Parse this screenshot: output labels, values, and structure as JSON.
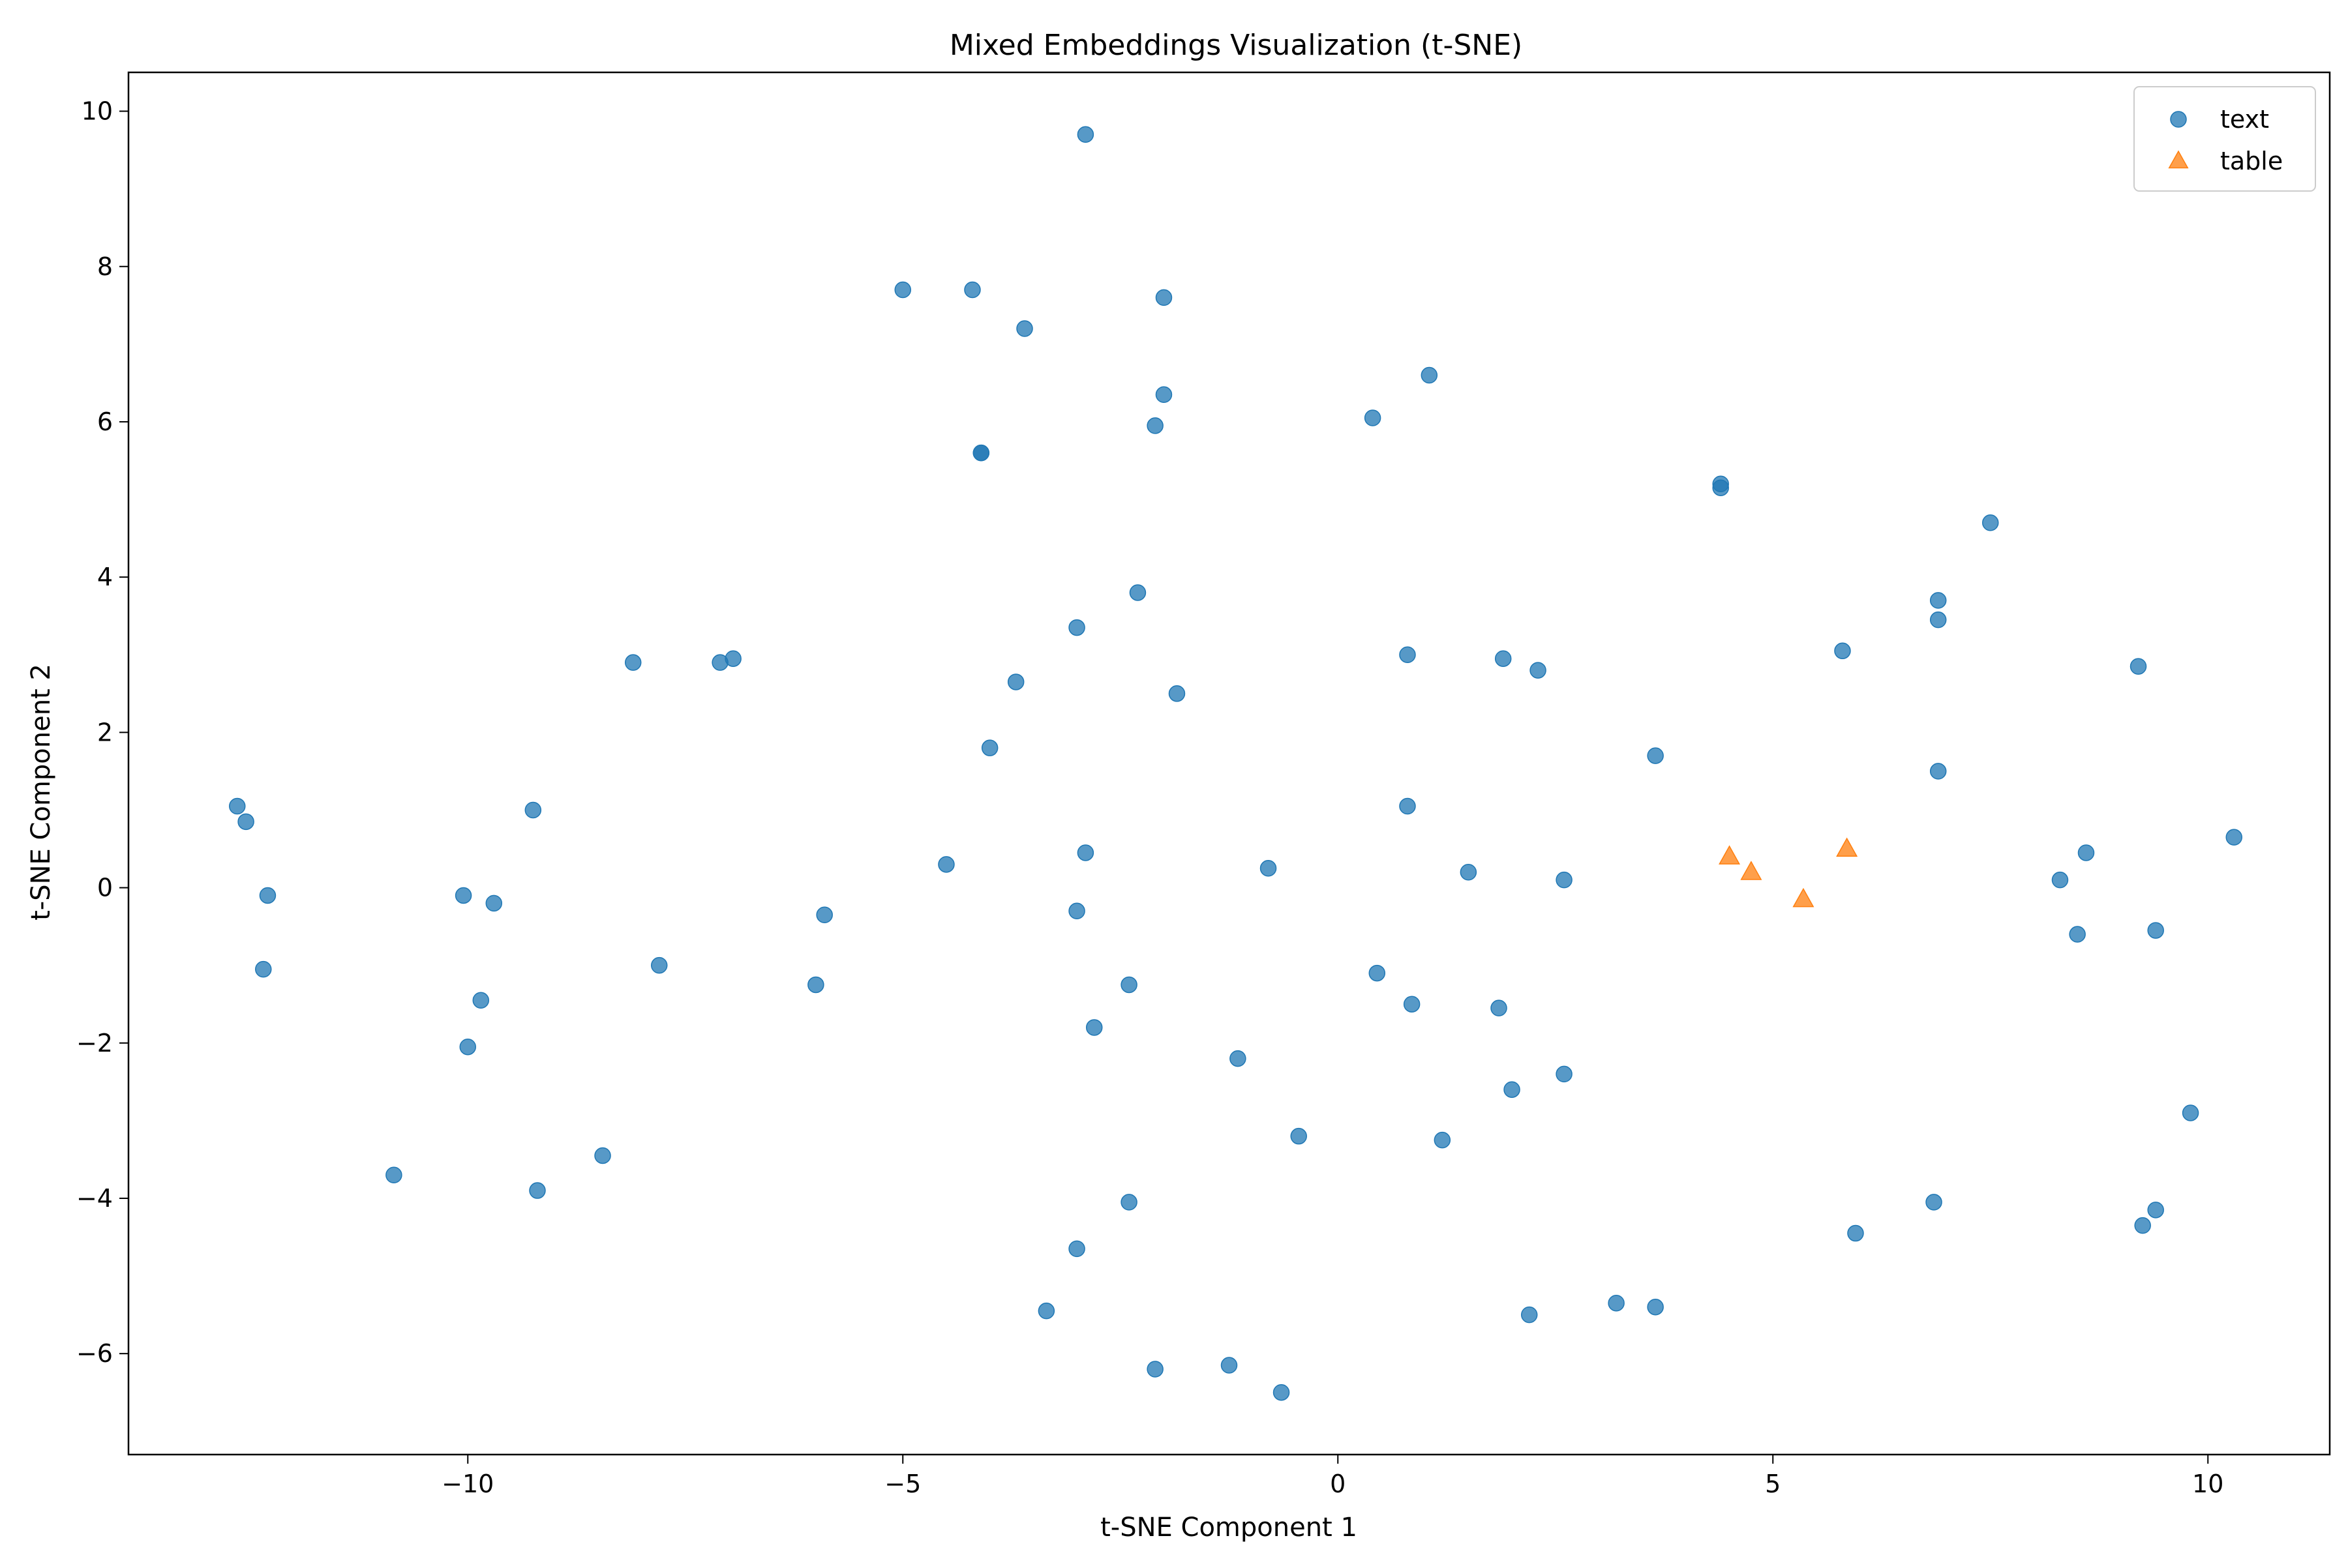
{
  "chart_data": {
    "type": "scatter",
    "title": "Mixed Embeddings Visualization (t-SNE)",
    "xlabel": "t-SNE Component 1",
    "ylabel": "t-SNE Component 2",
    "xlim": [
      -13.9,
      11.4
    ],
    "ylim": [
      -7.3,
      10.5
    ],
    "x_ticks": [
      -10,
      -5,
      0,
      5,
      10
    ],
    "x_tick_labels": [
      "−10",
      "−5",
      "0",
      "5",
      "10"
    ],
    "y_ticks": [
      -6,
      -4,
      -2,
      0,
      2,
      4,
      6,
      8,
      10
    ],
    "y_tick_labels": [
      "−6",
      "−4",
      "−2",
      "0",
      "2",
      "4",
      "6",
      "8",
      "10"
    ],
    "grid": false,
    "legend_position": "top-right",
    "series": [
      {
        "name": "text",
        "marker": "circle",
        "color": "#1f77b4",
        "points": [
          [
            -2.9,
            9.7
          ],
          [
            -5.0,
            7.7
          ],
          [
            -4.2,
            7.7
          ],
          [
            -2.0,
            7.6
          ],
          [
            -3.6,
            7.2
          ],
          [
            -2.0,
            6.35
          ],
          [
            -2.1,
            5.95
          ],
          [
            -4.1,
            5.6
          ],
          [
            -4.1,
            5.6
          ],
          [
            0.4,
            6.05
          ],
          [
            1.05,
            6.6
          ],
          [
            4.4,
            5.2
          ],
          [
            4.4,
            5.15
          ],
          [
            7.5,
            4.7
          ],
          [
            6.9,
            3.7
          ],
          [
            6.9,
            3.45
          ],
          [
            5.8,
            3.05
          ],
          [
            9.2,
            2.85
          ],
          [
            -2.3,
            3.8
          ],
          [
            -3.0,
            3.35
          ],
          [
            0.8,
            3.0
          ],
          [
            1.9,
            2.95
          ],
          [
            2.3,
            2.8
          ],
          [
            -3.7,
            2.65
          ],
          [
            -1.85,
            2.5
          ],
          [
            -8.1,
            2.9
          ],
          [
            -7.1,
            2.9
          ],
          [
            -6.95,
            2.95
          ],
          [
            -4.0,
            1.8
          ],
          [
            3.65,
            1.7
          ],
          [
            6.9,
            1.5
          ],
          [
            -12.65,
            1.05
          ],
          [
            -12.55,
            0.85
          ],
          [
            -9.25,
            1.0
          ],
          [
            0.8,
            1.05
          ],
          [
            -4.5,
            0.3
          ],
          [
            -2.9,
            0.45
          ],
          [
            -0.8,
            0.25
          ],
          [
            1.5,
            0.2
          ],
          [
            2.6,
            0.1
          ],
          [
            8.3,
            0.1
          ],
          [
            8.6,
            0.45
          ],
          [
            10.3,
            0.65
          ],
          [
            -12.3,
            -0.1
          ],
          [
            -10.05,
            -0.1
          ],
          [
            -9.7,
            -0.2
          ],
          [
            -5.9,
            -0.35
          ],
          [
            -3.0,
            -0.3
          ],
          [
            8.5,
            -0.6
          ],
          [
            9.4,
            -0.55
          ],
          [
            -12.35,
            -1.05
          ],
          [
            -7.8,
            -1.0
          ],
          [
            -6.0,
            -1.25
          ],
          [
            0.45,
            -1.1
          ],
          [
            -2.4,
            -1.25
          ],
          [
            -9.85,
            -1.45
          ],
          [
            0.85,
            -1.5
          ],
          [
            1.85,
            -1.55
          ],
          [
            -2.8,
            -1.8
          ],
          [
            -10.0,
            -2.05
          ],
          [
            -1.15,
            -2.2
          ],
          [
            2.0,
            -2.6
          ],
          [
            2.6,
            -2.4
          ],
          [
            -0.45,
            -3.2
          ],
          [
            1.2,
            -3.25
          ],
          [
            9.8,
            -2.9
          ],
          [
            -10.85,
            -3.7
          ],
          [
            -8.45,
            -3.45
          ],
          [
            -9.2,
            -3.9
          ],
          [
            -2.4,
            -4.05
          ],
          [
            6.85,
            -4.05
          ],
          [
            9.4,
            -4.15
          ],
          [
            9.25,
            -4.35
          ],
          [
            5.95,
            -4.45
          ],
          [
            -3.0,
            -4.65
          ],
          [
            -3.35,
            -5.45
          ],
          [
            2.2,
            -5.5
          ],
          [
            3.2,
            -5.35
          ],
          [
            3.65,
            -5.4
          ],
          [
            -2.1,
            -6.2
          ],
          [
            -1.25,
            -6.15
          ],
          [
            -0.65,
            -6.5
          ]
        ]
      },
      {
        "name": "table",
        "marker": "triangle",
        "color": "#ff7f0e",
        "points": [
          [
            4.5,
            0.4
          ],
          [
            4.75,
            0.2
          ],
          [
            5.35,
            -0.15
          ],
          [
            5.85,
            0.5
          ]
        ]
      }
    ]
  }
}
